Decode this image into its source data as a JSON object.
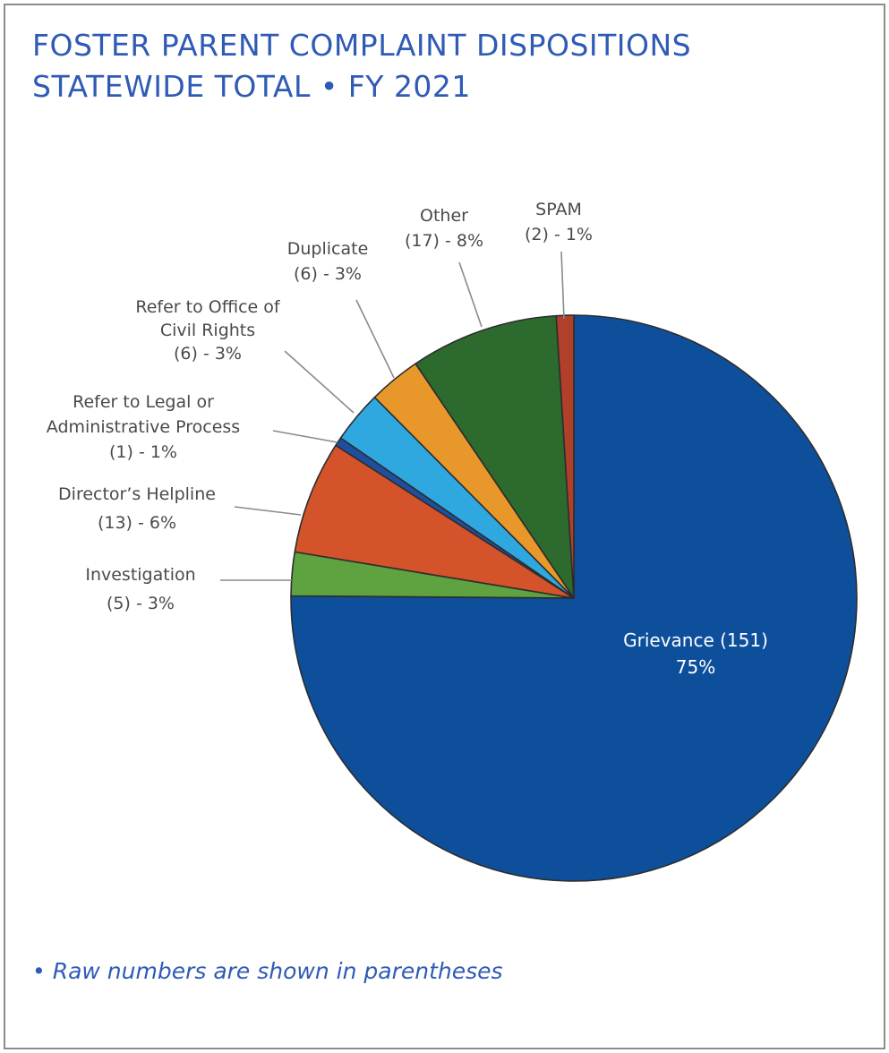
{
  "title": {
    "line1": "FOSTER PARENT COMPLAINT DISPOSITIONS",
    "line2": "STATEWIDE TOTAL • FY 2021"
  },
  "footnote": "• Raw numbers are shown in parentheses",
  "chart_data": {
    "type": "pie",
    "title": "FOSTER PARENT COMPLAINT DISPOSITIONS STATEWIDE TOTAL • FY 2021",
    "slices": [
      {
        "name": "Grievance",
        "count": 151,
        "percent": 75,
        "color": "#0d4f9b",
        "label_lines": [
          "Grievance (151)",
          "75%"
        ]
      },
      {
        "name": "Investigation",
        "count": 5,
        "percent": 3,
        "color": "#5fa240",
        "label_lines": [
          "Investigation",
          "(5) - 3%"
        ]
      },
      {
        "name": "Director's Helpline",
        "count": 13,
        "percent": 6,
        "color": "#d4532a",
        "label_lines": [
          "Director’s Helpline",
          "(13) - 6%"
        ]
      },
      {
        "name": "Refer to Legal or Administrative Process",
        "count": 1,
        "percent": 1,
        "color": "#1f4e9e",
        "label_lines": [
          "Refer to Legal or",
          "Administrative Process",
          "(1) - 1%"
        ]
      },
      {
        "name": "Refer to Office of Civil Rights",
        "count": 6,
        "percent": 3,
        "color": "#2fa8e0",
        "label_lines": [
          "Refer to Office of",
          "Civil Rights",
          "(6) - 3%"
        ]
      },
      {
        "name": "Duplicate",
        "count": 6,
        "percent": 3,
        "color": "#e8982a",
        "label_lines": [
          "Duplicate",
          "(6) - 3%"
        ]
      },
      {
        "name": "Other",
        "count": 17,
        "percent": 8,
        "color": "#2c6a2e",
        "label_lines": [
          "Other",
          "(17) - 8%"
        ]
      },
      {
        "name": "SPAM",
        "count": 2,
        "percent": 1,
        "color": "#b0402a",
        "label_lines": [
          "SPAM",
          "(2) - 1%"
        ]
      }
    ],
    "start": "12 o'clock",
    "direction": "clockwise"
  }
}
